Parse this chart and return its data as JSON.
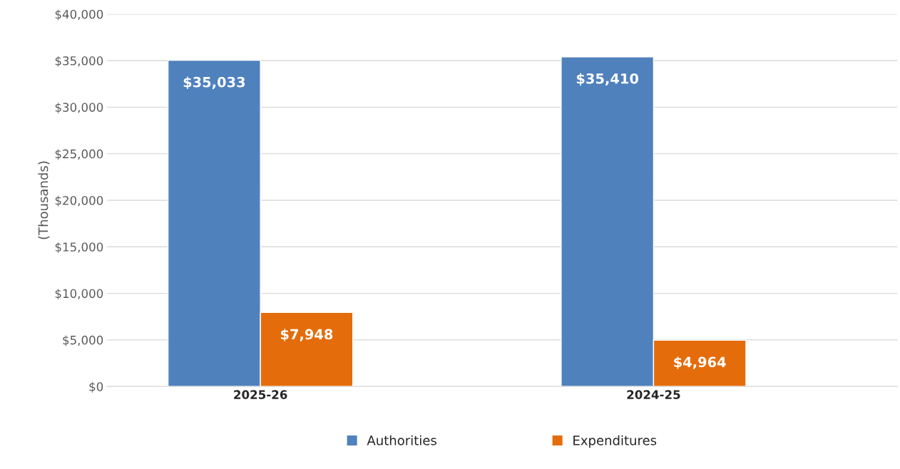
{
  "chart_data": {
    "type": "bar",
    "ylabel": "(Thousands)",
    "categories": [
      "2025-26",
      "2024-25"
    ],
    "series": [
      {
        "name": "Authorities",
        "color": "#4f81bd",
        "values": [
          35033,
          35410
        ],
        "value_labels": [
          "$35,033",
          "$35,410"
        ]
      },
      {
        "name": "Expenditures",
        "color": "#e46c0a",
        "values": [
          7948,
          4964
        ],
        "value_labels": [
          "$7,948",
          "$4,964"
        ]
      }
    ],
    "ylim": [
      0,
      40000
    ],
    "yticks": [
      {
        "value": 0,
        "label": "$0"
      },
      {
        "value": 5000,
        "label": "$5,000"
      },
      {
        "value": 10000,
        "label": "$10,000"
      },
      {
        "value": 15000,
        "label": "$15,000"
      },
      {
        "value": 20000,
        "label": "$20,000"
      },
      {
        "value": 25000,
        "label": "$25,000"
      },
      {
        "value": 30000,
        "label": "$30,000"
      },
      {
        "value": 35000,
        "label": "$35,000"
      },
      {
        "value": 40000,
        "label": "$40,000"
      }
    ],
    "grid": "y",
    "legend": "bottom"
  }
}
